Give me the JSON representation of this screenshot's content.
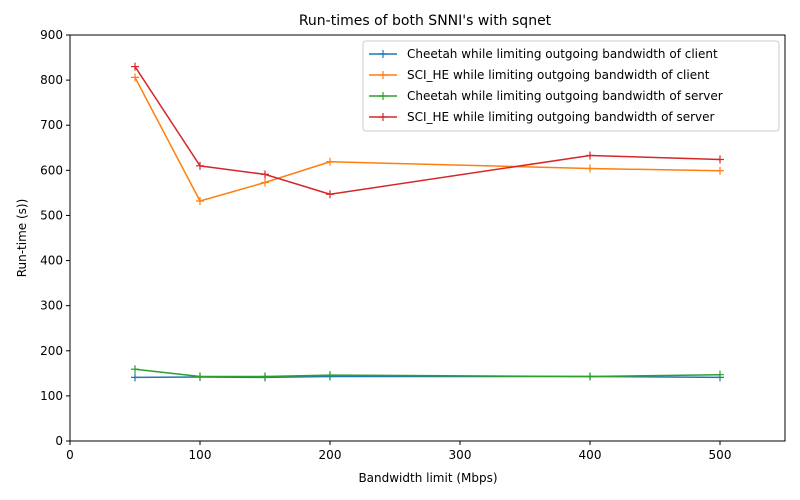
{
  "chart_data": {
    "type": "line",
    "title": "Run-times of both SNNI's with sqnet",
    "xlabel": "Bandwidth limit (Mbps)",
    "ylabel": "Run-time (s))",
    "xlim": [
      0,
      550
    ],
    "ylim": [
      0,
      900
    ],
    "xticks": [
      0,
      100,
      200,
      300,
      400,
      500
    ],
    "yticks": [
      0,
      100,
      200,
      300,
      400,
      500,
      600,
      700,
      800,
      900
    ],
    "grid": false,
    "legend_position": "top-right",
    "marker": "plus",
    "x": [
      50,
      100,
      150,
      200,
      400,
      500
    ],
    "series": [
      {
        "name": "Cheetah while limiting outgoing bandwidth of client",
        "color": "#1f77b4",
        "values": [
          141,
          142,
          141,
          143,
          143,
          141
        ]
      },
      {
        "name": "SCI_HE while limiting outgoing bandwidth of client",
        "color": "#ff7f0e",
        "values": [
          806,
          532,
          573,
          619,
          604,
          599
        ]
      },
      {
        "name": "Cheetah while limiting outgoing bandwidth of server",
        "color": "#2ca02c",
        "values": [
          159,
          143,
          143,
          146,
          143,
          147
        ]
      },
      {
        "name": "SCI_HE while limiting outgoing bandwidth of server",
        "color": "#d62728",
        "values": [
          830,
          610,
          591,
          547,
          633,
          624
        ]
      }
    ]
  }
}
